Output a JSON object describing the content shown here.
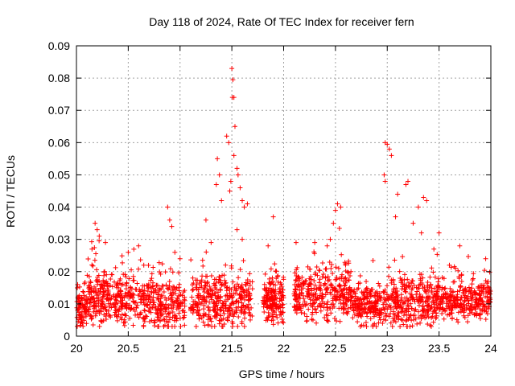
{
  "chart_data": {
    "type": "scatter",
    "title": "Day 118 of 2024, Rate Of TEC Index for receiver fern",
    "xlabel": "GPS time / hours",
    "ylabel": "ROTI / TECUs",
    "xlim": [
      20,
      24
    ],
    "ylim": [
      0,
      0.09
    ],
    "xticks": [
      "20",
      "20.5",
      "21",
      "21.5",
      "22",
      "22.5",
      "23",
      "23.5",
      "24"
    ],
    "yticks": [
      "0",
      "0.01",
      "0.02",
      "0.03",
      "0.04",
      "0.05",
      "0.06",
      "0.07",
      "0.08",
      "0.09"
    ],
    "grid": true,
    "marker": "+",
    "color": "#ff0000",
    "density": [
      {
        "from": 20.0,
        "to": 20.1,
        "base": 0.009,
        "spread": 0.006,
        "count": 80
      },
      {
        "from": 20.1,
        "to": 20.3,
        "base": 0.012,
        "spread": 0.01,
        "count": 150
      },
      {
        "from": 20.3,
        "to": 20.75,
        "base": 0.011,
        "spread": 0.007,
        "count": 260
      },
      {
        "from": 20.75,
        "to": 21.05,
        "base": 0.009,
        "spread": 0.007,
        "count": 180
      },
      {
        "from": 21.1,
        "to": 21.7,
        "base": 0.011,
        "spread": 0.008,
        "count": 360
      },
      {
        "from": 21.8,
        "to": 22.0,
        "base": 0.011,
        "spread": 0.006,
        "count": 170
      },
      {
        "from": 22.1,
        "to": 22.65,
        "base": 0.013,
        "spread": 0.008,
        "count": 330
      },
      {
        "from": 22.65,
        "to": 23.0,
        "base": 0.01,
        "spread": 0.006,
        "count": 220
      },
      {
        "from": 23.0,
        "to": 23.5,
        "base": 0.011,
        "spread": 0.008,
        "count": 320
      },
      {
        "from": 23.5,
        "to": 24.0,
        "base": 0.011,
        "spread": 0.006,
        "count": 300
      }
    ],
    "peaks": [
      {
        "x": 20.18,
        "y": 0.035
      },
      {
        "x": 20.2,
        "y": 0.033
      },
      {
        "x": 20.22,
        "y": 0.031
      },
      {
        "x": 20.15,
        "y": 0.027
      },
      {
        "x": 20.28,
        "y": 0.029
      },
      {
        "x": 20.5,
        "y": 0.026
      },
      {
        "x": 20.6,
        "y": 0.028
      },
      {
        "x": 20.65,
        "y": 0.022
      },
      {
        "x": 20.88,
        "y": 0.04
      },
      {
        "x": 20.9,
        "y": 0.036
      },
      {
        "x": 20.92,
        "y": 0.034
      },
      {
        "x": 20.95,
        "y": 0.026
      },
      {
        "x": 21.0,
        "y": 0.024
      },
      {
        "x": 21.25,
        "y": 0.036
      },
      {
        "x": 21.3,
        "y": 0.029
      },
      {
        "x": 21.35,
        "y": 0.047
      },
      {
        "x": 21.36,
        "y": 0.055
      },
      {
        "x": 21.38,
        "y": 0.05
      },
      {
        "x": 21.4,
        "y": 0.042
      },
      {
        "x": 21.45,
        "y": 0.062
      },
      {
        "x": 21.47,
        "y": 0.06
      },
      {
        "x": 21.48,
        "y": 0.045
      },
      {
        "x": 21.5,
        "y": 0.083
      },
      {
        "x": 21.51,
        "y": 0.0795
      },
      {
        "x": 21.505,
        "y": 0.074
      },
      {
        "x": 21.52,
        "y": 0.074
      },
      {
        "x": 21.53,
        "y": 0.065
      },
      {
        "x": 21.55,
        "y": 0.052
      },
      {
        "x": 21.56,
        "y": 0.05
      },
      {
        "x": 21.58,
        "y": 0.046
      },
      {
        "x": 21.52,
        "y": 0.056
      },
      {
        "x": 21.49,
        "y": 0.048
      },
      {
        "x": 21.6,
        "y": 0.042
      },
      {
        "x": 21.62,
        "y": 0.04
      },
      {
        "x": 21.65,
        "y": 0.041
      },
      {
        "x": 21.55,
        "y": 0.033
      },
      {
        "x": 21.6,
        "y": 0.03
      },
      {
        "x": 21.9,
        "y": 0.037
      },
      {
        "x": 21.85,
        "y": 0.028
      },
      {
        "x": 22.12,
        "y": 0.029
      },
      {
        "x": 22.3,
        "y": 0.029
      },
      {
        "x": 22.48,
        "y": 0.035
      },
      {
        "x": 22.5,
        "y": 0.039
      },
      {
        "x": 22.52,
        "y": 0.041
      },
      {
        "x": 22.55,
        "y": 0.04
      },
      {
        "x": 22.45,
        "y": 0.03
      },
      {
        "x": 22.42,
        "y": 0.028
      },
      {
        "x": 22.98,
        "y": 0.06
      },
      {
        "x": 23.0,
        "y": 0.0595
      },
      {
        "x": 23.02,
        "y": 0.058
      },
      {
        "x": 23.04,
        "y": 0.056
      },
      {
        "x": 22.97,
        "y": 0.05
      },
      {
        "x": 22.98,
        "y": 0.048
      },
      {
        "x": 23.1,
        "y": 0.044
      },
      {
        "x": 23.08,
        "y": 0.037
      },
      {
        "x": 23.2,
        "y": 0.048
      },
      {
        "x": 23.18,
        "y": 0.047
      },
      {
        "x": 23.3,
        "y": 0.04
      },
      {
        "x": 23.35,
        "y": 0.043
      },
      {
        "x": 23.38,
        "y": 0.042
      },
      {
        "x": 23.25,
        "y": 0.035
      },
      {
        "x": 23.33,
        "y": 0.032
      },
      {
        "x": 23.45,
        "y": 0.027
      },
      {
        "x": 23.5,
        "y": 0.032
      },
      {
        "x": 23.6,
        "y": 0.022
      },
      {
        "x": 23.7,
        "y": 0.028
      },
      {
        "x": 23.95,
        "y": 0.024
      }
    ]
  }
}
